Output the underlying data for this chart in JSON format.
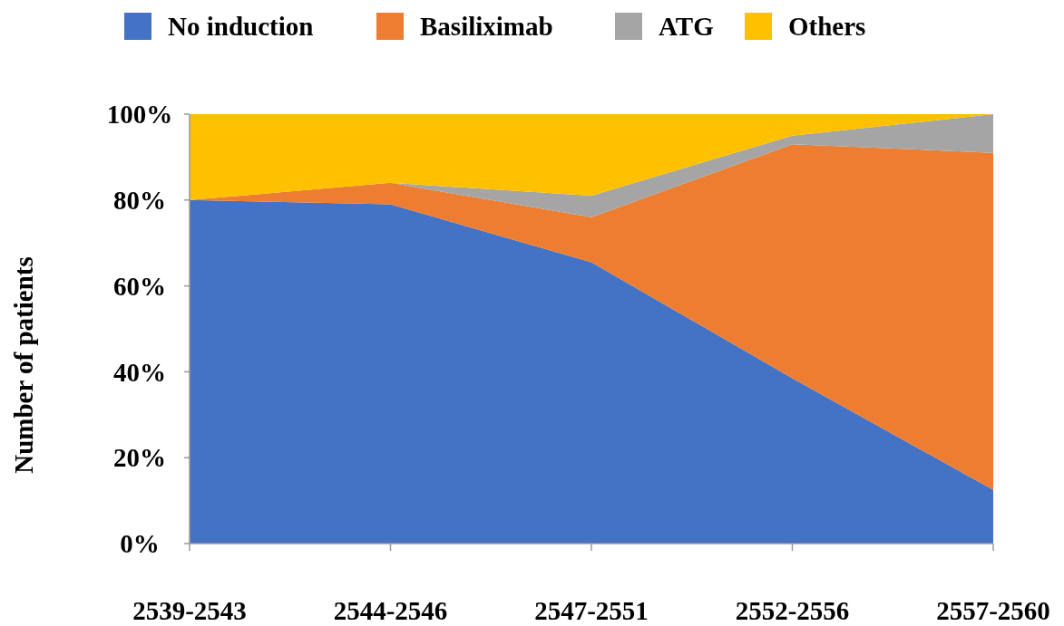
{
  "chart_data": {
    "type": "area",
    "stacked": true,
    "ylabel": "Number of patients",
    "categories": [
      "2539-2543",
      "2544-2546",
      "2547-2551",
      "2552-2556",
      "2557-2560"
    ],
    "series": [
      {
        "name": "No induction",
        "color": "#4472c4",
        "values": [
          80,
          79,
          65.5,
          38.5,
          12.5
        ]
      },
      {
        "name": "Basiliximab",
        "color": "#ed7d31",
        "values": [
          0,
          5,
          10.5,
          54.5,
          78.5
        ]
      },
      {
        "name": "ATG",
        "color": "#a5a5a5",
        "values": [
          0,
          0,
          5,
          2,
          9
        ]
      },
      {
        "name": "Others",
        "color": "#ffc000",
        "values": [
          20,
          16,
          19,
          5,
          0
        ]
      }
    ],
    "ylim": [
      0,
      100
    ],
    "yticks": [
      {
        "value": 0,
        "label": "0%"
      },
      {
        "value": 20,
        "label": "20%"
      },
      {
        "value": 40,
        "label": "40%"
      },
      {
        "value": 60,
        "label": "60%"
      },
      {
        "value": 80,
        "label": "80%"
      },
      {
        "value": 100,
        "label": "100%"
      }
    ],
    "grid": false,
    "legend": "top"
  }
}
